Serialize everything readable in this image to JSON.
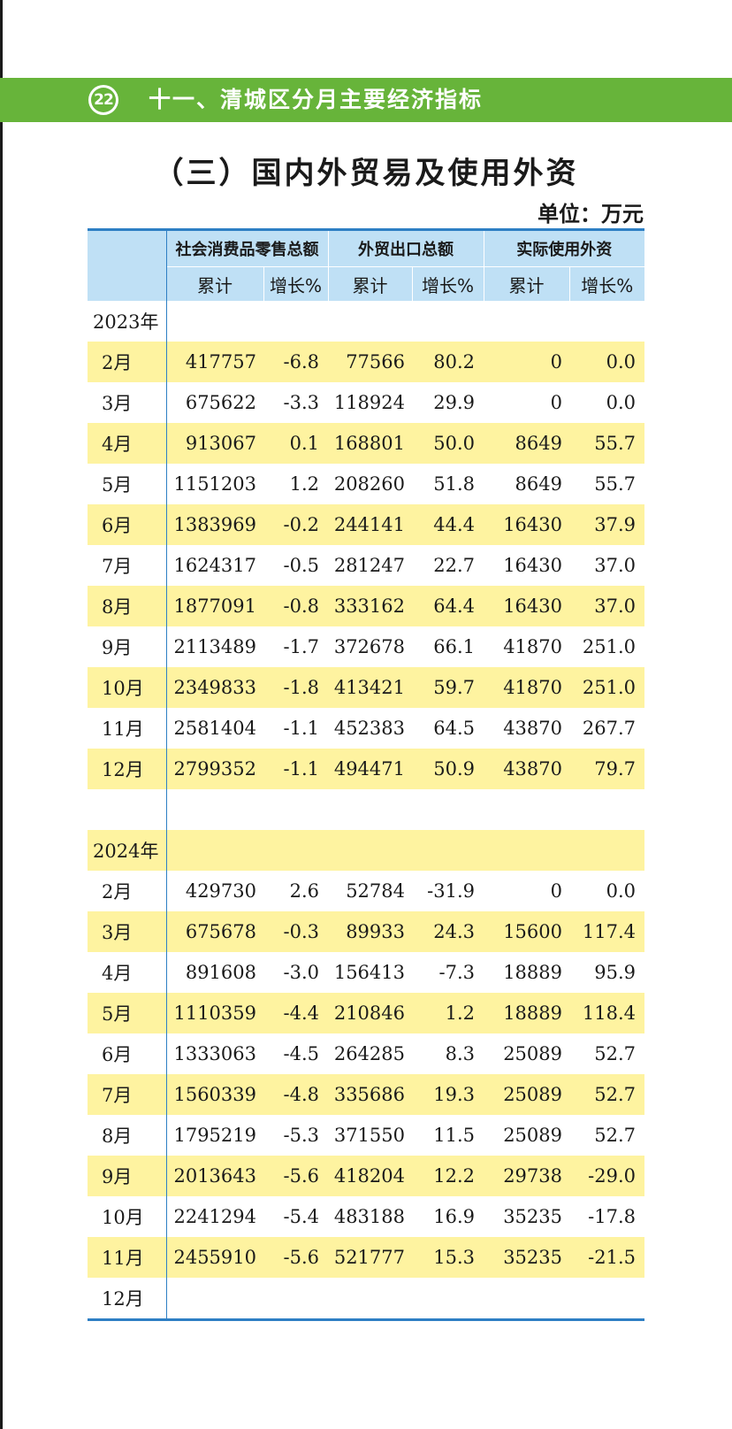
{
  "banner": {
    "page_number": "22",
    "title": "十一、清城区分月主要经济指标"
  },
  "section_title": "（三）国内外贸易及使用外资",
  "unit": "单位：万元",
  "colors": {
    "banner_green": "#67b43a",
    "header_blue": "#bfe0f5",
    "rule_blue": "#2e7fc4",
    "row_yellow": "#fef3a0"
  },
  "table": {
    "groups": [
      "社会消费品零售总额",
      "外贸出口总额",
      "实际使用外资"
    ],
    "subheaders": [
      "累计",
      "增长%",
      "累计",
      "增长%",
      "累计",
      "增长%"
    ],
    "rows": [
      {
        "kind": "year",
        "label": "2023年",
        "cells": [
          "",
          "",
          "",
          "",
          "",
          ""
        ],
        "highlight": false
      },
      {
        "kind": "month",
        "label": "2月",
        "cells": [
          "417757",
          "-6.8",
          "77566",
          "80.2",
          "0",
          "0.0"
        ],
        "highlight": true
      },
      {
        "kind": "month",
        "label": "3月",
        "cells": [
          "675622",
          "-3.3",
          "118924",
          "29.9",
          "0",
          "0.0"
        ],
        "highlight": false
      },
      {
        "kind": "month",
        "label": "4月",
        "cells": [
          "913067",
          "0.1",
          "168801",
          "50.0",
          "8649",
          "55.7"
        ],
        "highlight": true
      },
      {
        "kind": "month",
        "label": "5月",
        "cells": [
          "1151203",
          "1.2",
          "208260",
          "51.8",
          "8649",
          "55.7"
        ],
        "highlight": false
      },
      {
        "kind": "month",
        "label": "6月",
        "cells": [
          "1383969",
          "-0.2",
          "244141",
          "44.4",
          "16430",
          "37.9"
        ],
        "highlight": true
      },
      {
        "kind": "month",
        "label": "7月",
        "cells": [
          "1624317",
          "-0.5",
          "281247",
          "22.7",
          "16430",
          "37.0"
        ],
        "highlight": false
      },
      {
        "kind": "month",
        "label": "8月",
        "cells": [
          "1877091",
          "-0.8",
          "333162",
          "64.4",
          "16430",
          "37.0"
        ],
        "highlight": true
      },
      {
        "kind": "month",
        "label": "9月",
        "cells": [
          "2113489",
          "-1.7",
          "372678",
          "66.1",
          "41870",
          "251.0"
        ],
        "highlight": false
      },
      {
        "kind": "month",
        "label": "10月",
        "cells": [
          "2349833",
          "-1.8",
          "413421",
          "59.7",
          "41870",
          "251.0"
        ],
        "highlight": true
      },
      {
        "kind": "month",
        "label": "11月",
        "cells": [
          "2581404",
          "-1.1",
          "452383",
          "64.5",
          "43870",
          "267.7"
        ],
        "highlight": false
      },
      {
        "kind": "month",
        "label": "12月",
        "cells": [
          "2799352",
          "-1.1",
          "494471",
          "50.9",
          "43870",
          "79.7"
        ],
        "highlight": true
      },
      {
        "kind": "spacer",
        "label": "",
        "cells": [
          "",
          "",
          "",
          "",
          "",
          ""
        ],
        "highlight": false
      },
      {
        "kind": "year",
        "label": "2024年",
        "cells": [
          "",
          "",
          "",
          "",
          "",
          ""
        ],
        "highlight": true
      },
      {
        "kind": "month",
        "label": "2月",
        "cells": [
          "429730",
          "2.6",
          "52784",
          "-31.9",
          "0",
          "0.0"
        ],
        "highlight": false
      },
      {
        "kind": "month",
        "label": "3月",
        "cells": [
          "675678",
          "-0.3",
          "89933",
          "24.3",
          "15600",
          "117.4"
        ],
        "highlight": true
      },
      {
        "kind": "month",
        "label": "4月",
        "cells": [
          "891608",
          "-3.0",
          "156413",
          "-7.3",
          "18889",
          "95.9"
        ],
        "highlight": false
      },
      {
        "kind": "month",
        "label": "5月",
        "cells": [
          "1110359",
          "-4.4",
          "210846",
          "1.2",
          "18889",
          "118.4"
        ],
        "highlight": true
      },
      {
        "kind": "month",
        "label": "6月",
        "cells": [
          "1333063",
          "-4.5",
          "264285",
          "8.3",
          "25089",
          "52.7"
        ],
        "highlight": false
      },
      {
        "kind": "month",
        "label": "7月",
        "cells": [
          "1560339",
          "-4.8",
          "335686",
          "19.3",
          "25089",
          "52.7"
        ],
        "highlight": true
      },
      {
        "kind": "month",
        "label": "8月",
        "cells": [
          "1795219",
          "-5.3",
          "371550",
          "11.5",
          "25089",
          "52.7"
        ],
        "highlight": false
      },
      {
        "kind": "month",
        "label": "9月",
        "cells": [
          "2013643",
          "-5.6",
          "418204",
          "12.2",
          "29738",
          "-29.0"
        ],
        "highlight": true
      },
      {
        "kind": "month",
        "label": "10月",
        "cells": [
          "2241294",
          "-5.4",
          "483188",
          "16.9",
          "35235",
          "-17.8"
        ],
        "highlight": false
      },
      {
        "kind": "month",
        "label": "11月",
        "cells": [
          "2455910",
          "-5.6",
          "521777",
          "15.3",
          "35235",
          "-21.5"
        ],
        "highlight": true
      },
      {
        "kind": "month",
        "label": "12月",
        "cells": [
          "",
          "",
          "",
          "",
          "",
          ""
        ],
        "highlight": false
      }
    ]
  }
}
